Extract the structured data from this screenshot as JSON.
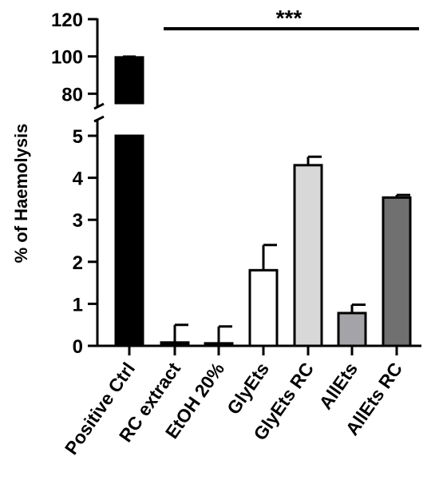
{
  "chart_data": {
    "type": "bar",
    "title": "",
    "xlabel": "",
    "ylabel": "% of Haemolysis",
    "y_axis": {
      "broken": true,
      "lower_range": [
        0,
        5
      ],
      "lower_ticks": [
        "0",
        "1",
        "2",
        "3",
        "4",
        "5"
      ],
      "upper_range": [
        75,
        120
      ],
      "upper_ticks": [
        "80",
        "100",
        "120"
      ]
    },
    "categories": [
      "Positive Ctrl",
      "RC extract",
      "EtOH 20%",
      "GlyEts",
      "GlyEts RC",
      "AllEts",
      "AllEts RC"
    ],
    "values": [
      99.5,
      0.08,
      0.06,
      1.8,
      4.3,
      0.78,
      3.53
    ],
    "errors": [
      0.4,
      0.42,
      0.4,
      0.6,
      0.2,
      0.2,
      0.06
    ],
    "colors": [
      "#000000",
      "#000000",
      "#000000",
      "#ffffff",
      "#d8d8d8",
      "#a3a3a8",
      "#707070"
    ],
    "significance": {
      "label": "***",
      "from_category": "RC extract",
      "to_category": "AllEts RC"
    },
    "grid": false,
    "legend": "none"
  }
}
